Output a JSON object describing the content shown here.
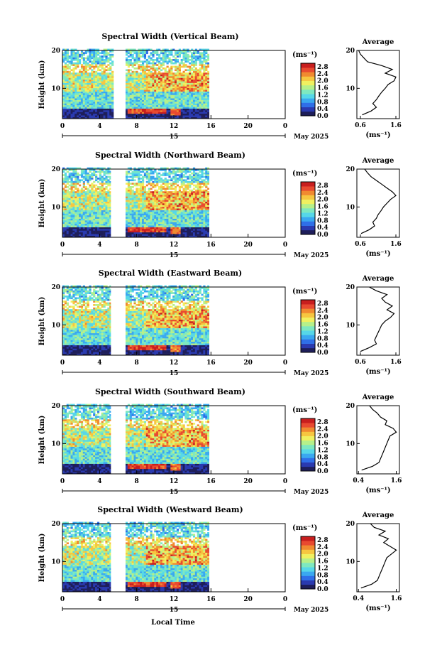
{
  "figure": {
    "xlabel": "Local Time",
    "date_label": "May 2025",
    "day_label": "15",
    "height_label": "Height (km)",
    "unit_label": "(ms⁻¹)",
    "average_title": "Average"
  },
  "colors": {
    "scale": [
      "#1e1e5a",
      "#2a3ab0",
      "#2f6fe8",
      "#3aa8f0",
      "#56d7e8",
      "#7ee8c0",
      "#b6f08a",
      "#f0f060",
      "#f6c640",
      "#f08a30",
      "#e84a30",
      "#c81e1e"
    ]
  },
  "chart_data": [
    {
      "type": "heatmap",
      "title": "Spectral Width (Vertical Beam)",
      "x_ticks": [
        "0",
        "4",
        "8",
        "12",
        "16",
        "20",
        "0"
      ],
      "xlim": [
        0,
        24
      ],
      "y_ticks": [
        "10",
        "20"
      ],
      "ylim": [
        2,
        20
      ],
      "data_coverage_hours": [
        [
          0,
          5.5
        ],
        [
          6.8,
          15.8
        ]
      ],
      "colorbar": {
        "ticks": [
          "0.0",
          "0.4",
          "0.8",
          "1.2",
          "1.6",
          "2.0",
          "2.4",
          "2.8"
        ],
        "range": [
          0,
          3.0
        ]
      },
      "profile": {
        "title": "Average",
        "x_ticks": [
          "0.6",
          "1.6"
        ],
        "xlim": [
          0.5,
          1.7
        ],
        "y_ticks": [
          "10",
          "20"
        ],
        "ylim": [
          2,
          20
        ],
        "height_km": [
          3,
          4,
          5,
          6,
          7,
          8,
          9,
          10,
          11,
          12,
          13,
          14,
          15,
          16,
          17,
          18,
          19,
          20
        ],
        "width_ms": [
          0.65,
          0.9,
          1.05,
          0.95,
          1.05,
          1.12,
          1.2,
          1.3,
          1.38,
          1.55,
          1.6,
          1.3,
          1.5,
          1.2,
          0.8,
          0.7,
          0.6,
          0.55
        ]
      }
    },
    {
      "type": "heatmap",
      "title": "Spectral Width (Northward Beam)",
      "x_ticks": [
        "0",
        "4",
        "8",
        "12",
        "16",
        "20",
        "0"
      ],
      "xlim": [
        0,
        24
      ],
      "y_ticks": [
        "10",
        "20"
      ],
      "ylim": [
        2,
        20
      ],
      "data_coverage_hours": [
        [
          0,
          5.2
        ],
        [
          6.8,
          15.8
        ]
      ],
      "colorbar": {
        "ticks": [
          "0.0",
          "0.4",
          "0.8",
          "1.2",
          "1.6",
          "2.0",
          "2.4",
          "2.8"
        ],
        "range": [
          0,
          3.0
        ]
      },
      "profile": {
        "title": "Average",
        "x_ticks": [
          "0.6",
          "1.6"
        ],
        "xlim": [
          0.5,
          1.7
        ],
        "y_ticks": [
          "10",
          "20"
        ],
        "ylim": [
          2,
          20
        ],
        "height_km": [
          3,
          4,
          5,
          6,
          7,
          8,
          9,
          10,
          11,
          12,
          13,
          14,
          15,
          16,
          17,
          18,
          19,
          20
        ],
        "width_ms": [
          0.62,
          0.85,
          1.0,
          0.95,
          1.05,
          1.1,
          1.18,
          1.25,
          1.35,
          1.45,
          1.6,
          1.5,
          1.35,
          1.2,
          1.05,
          0.9,
          0.8,
          0.72
        ]
      }
    },
    {
      "type": "heatmap",
      "title": "Spectral Width (Eastward Beam)",
      "x_ticks": [
        "0",
        "4",
        "8",
        "12",
        "16",
        "20",
        "0"
      ],
      "xlim": [
        0,
        24
      ],
      "y_ticks": [
        "10",
        "20"
      ],
      "ylim": [
        2,
        20
      ],
      "data_coverage_hours": [
        [
          0,
          5.2
        ],
        [
          6.8,
          15.8
        ]
      ],
      "colorbar": {
        "ticks": [
          "0.0",
          "0.4",
          "0.8",
          "1.2",
          "1.6",
          "2.0",
          "2.4",
          "2.8"
        ],
        "range": [
          0,
          3.0
        ]
      },
      "profile": {
        "title": "Average",
        "x_ticks": [
          "0.6",
          "1.6"
        ],
        "xlim": [
          0.5,
          1.7
        ],
        "y_ticks": [
          "10",
          "20"
        ],
        "ylim": [
          2,
          20
        ],
        "height_km": [
          3,
          4,
          5,
          6,
          7,
          8,
          9,
          10,
          11,
          12,
          13,
          14,
          15,
          16,
          17,
          18,
          19,
          20
        ],
        "width_ms": [
          0.6,
          0.85,
          1.05,
          1.0,
          1.05,
          1.1,
          1.15,
          1.2,
          1.3,
          1.45,
          1.55,
          1.35,
          1.5,
          1.3,
          1.2,
          1.35,
          1.05,
          0.85
        ]
      }
    },
    {
      "type": "heatmap",
      "title": "Spectral Width (Southward Beam)",
      "x_ticks": [
        "0",
        "4",
        "8",
        "12",
        "16",
        "20",
        "0"
      ],
      "xlim": [
        0,
        24
      ],
      "y_ticks": [
        "10",
        "20"
      ],
      "ylim": [
        2,
        20
      ],
      "data_coverage_hours": [
        [
          0,
          5.2
        ],
        [
          6.8,
          15.8
        ]
      ],
      "colorbar": {
        "ticks": [
          "0.0",
          "0.4",
          "0.8",
          "1.2",
          "1.6",
          "2.0",
          "2.4",
          "2.8"
        ],
        "range": [
          0,
          3.0
        ]
      },
      "profile": {
        "title": "Average",
        "x_ticks": [
          "0.4",
          "1.6"
        ],
        "xlim": [
          0.35,
          1.7
        ],
        "y_ticks": [
          "10",
          "20"
        ],
        "ylim": [
          2,
          20
        ],
        "height_km": [
          3,
          4,
          5,
          6,
          7,
          8,
          9,
          10,
          11,
          12,
          13,
          14,
          15,
          16,
          17,
          18,
          19,
          20
        ],
        "width_ms": [
          0.5,
          0.85,
          1.05,
          1.1,
          1.15,
          1.2,
          1.25,
          1.3,
          1.35,
          1.4,
          1.6,
          1.5,
          1.25,
          1.3,
          1.1,
          1.0,
          0.85,
          0.75
        ]
      }
    },
    {
      "type": "heatmap",
      "title": "Spectral Width (Westward Beam)",
      "x_ticks": [
        "0",
        "4",
        "8",
        "12",
        "16",
        "20",
        "0"
      ],
      "xlim": [
        0,
        24
      ],
      "y_ticks": [
        "10",
        "20"
      ],
      "ylim": [
        2,
        20
      ],
      "data_coverage_hours": [
        [
          0,
          5.2
        ],
        [
          6.8,
          15.8
        ]
      ],
      "colorbar": {
        "ticks": [
          "0.0",
          "0.4",
          "0.8",
          "1.2",
          "1.6",
          "2.0",
          "2.4",
          "2.8"
        ],
        "range": [
          0,
          3.0
        ]
      },
      "profile": {
        "title": "Average",
        "x_ticks": [
          "0.4",
          "1.6"
        ],
        "xlim": [
          0.35,
          1.7
        ],
        "y_ticks": [
          "10",
          "20"
        ],
        "ylim": [
          2,
          20
        ],
        "height_km": [
          3,
          4,
          5,
          6,
          7,
          8,
          9,
          10,
          11,
          12,
          13,
          14,
          15,
          16,
          17,
          18,
          19,
          20
        ],
        "width_ms": [
          0.48,
          0.82,
          1.0,
          1.05,
          1.1,
          1.15,
          1.2,
          1.25,
          1.3,
          1.45,
          1.6,
          1.4,
          1.2,
          1.35,
          1.05,
          1.25,
          0.9,
          0.78
        ]
      }
    }
  ]
}
